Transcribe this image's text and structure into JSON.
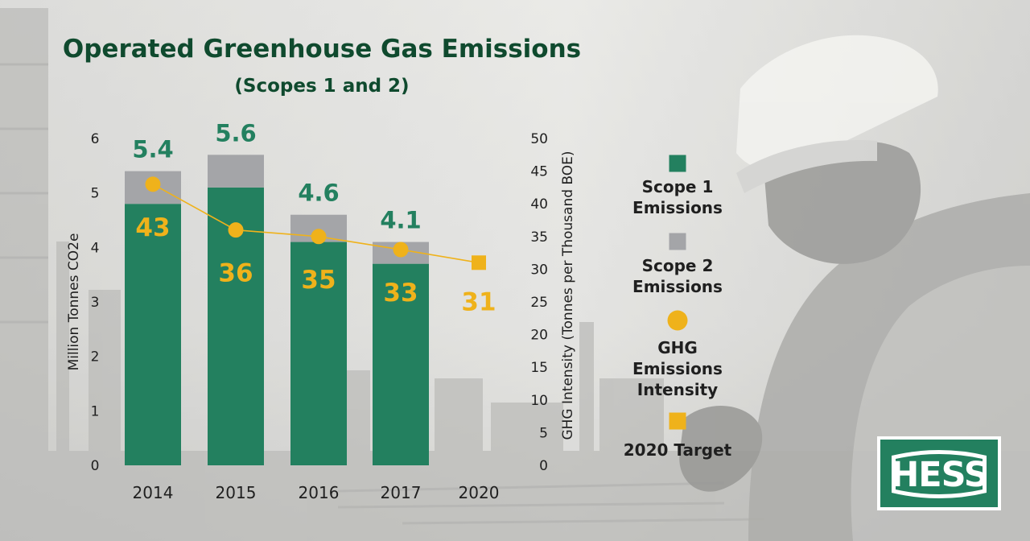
{
  "colors": {
    "scope1": "#23805f",
    "scope2": "#a4a5a8",
    "intensity": "#efb21b",
    "title": "#0f4a2e",
    "total_label": "#23805f",
    "logo": "#23805f"
  },
  "logo": {
    "text": "HESS"
  },
  "chart_data": {
    "type": "bar",
    "title": "Operated Greenhouse Gas Emissions",
    "subtitle": "(Scopes 1 and 2)",
    "categories": [
      "2014",
      "2015",
      "2016",
      "2017",
      "2020"
    ],
    "ylabel": "Million Tonnes CO2e",
    "y2label": "GHG Intensity (Tonnes per Thousand BOE)",
    "ylim": [
      0,
      6
    ],
    "y2lim": [
      0,
      50
    ],
    "yticks": [
      "0",
      "1",
      "2",
      "3",
      "4",
      "5",
      "6"
    ],
    "y2ticks": [
      "0",
      "5",
      "10",
      "15",
      "20",
      "25",
      "30",
      "35",
      "40",
      "45",
      "50"
    ],
    "stacked": true,
    "grid": false,
    "legend_position": "right",
    "series": [
      {
        "name": "Scope 1 Emissions",
        "type": "bar",
        "values": [
          4.8,
          5.1,
          4.1,
          3.7,
          null
        ]
      },
      {
        "name": "Scope 2 Emissions",
        "type": "bar",
        "values": [
          0.6,
          0.6,
          0.5,
          0.4,
          null
        ]
      },
      {
        "name": "GHG Emissions Intensity",
        "type": "line",
        "axis": "y2",
        "values": [
          43,
          36,
          35,
          33,
          null
        ]
      },
      {
        "name": "2020 Target",
        "type": "marker",
        "axis": "y2",
        "values": [
          null,
          null,
          null,
          null,
          31
        ]
      }
    ],
    "total_labels": [
      "5.4",
      "5.6",
      "4.6",
      "4.1",
      ""
    ],
    "intensity_labels": [
      "43",
      "36",
      "35",
      "33",
      "31"
    ]
  },
  "legend": [
    {
      "label_lines": [
        "Scope 1",
        "Emissions"
      ],
      "shape": "square",
      "color_key": "scope1"
    },
    {
      "label_lines": [
        "Scope 2",
        "Emissions"
      ],
      "shape": "square",
      "color_key": "scope2"
    },
    {
      "label_lines": [
        "GHG",
        "Emissions",
        "Intensity"
      ],
      "shape": "circle",
      "color_key": "intensity"
    },
    {
      "label_lines": [
        "2020 Target"
      ],
      "shape": "square",
      "color_key": "intensity"
    }
  ]
}
